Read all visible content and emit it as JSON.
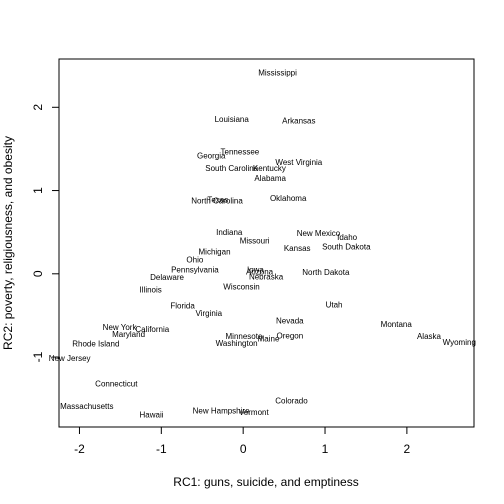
{
  "chart_data": {
    "type": "scatter",
    "xlabel": "RC1: guns, suicide, and emptiness",
    "ylabel": "RC2: poverty, religiousness, and obesity",
    "xlim": [
      -2.25,
      2.82
    ],
    "ylim": [
      -1.84,
      2.58
    ],
    "x_ticks": [
      "-2",
      "-1",
      "0",
      "1",
      "2"
    ],
    "y_ticks": [
      "-1",
      "0",
      "1",
      "2"
    ],
    "points": [
      {
        "label": "Mississippi",
        "x": 0.42,
        "y": 2.42
      },
      {
        "label": "Louisiana",
        "x": -0.14,
        "y": 1.86
      },
      {
        "label": "Arkansas",
        "x": 0.68,
        "y": 1.84
      },
      {
        "label": "Tennessee",
        "x": -0.04,
        "y": 1.47
      },
      {
        "label": "Georgia",
        "x": -0.39,
        "y": 1.42
      },
      {
        "label": "West Virginia",
        "x": 0.68,
        "y": 1.34
      },
      {
        "label": "South Carolina",
        "x": -0.14,
        "y": 1.27
      },
      {
        "label": "Kentucky",
        "x": 0.32,
        "y": 1.27
      },
      {
        "label": "Alabama",
        "x": 0.33,
        "y": 1.15
      },
      {
        "label": "North Carolina",
        "x": -0.32,
        "y": 0.88
      },
      {
        "label": "Texas",
        "x": -0.31,
        "y": 0.89
      },
      {
        "label": "Oklahoma",
        "x": 0.55,
        "y": 0.91
      },
      {
        "label": "Indiana",
        "x": -0.17,
        "y": 0.5
      },
      {
        "label": "New Mexico",
        "x": 0.92,
        "y": 0.49
      },
      {
        "label": "Idaho",
        "x": 1.27,
        "y": 0.44
      },
      {
        "label": "Missouri",
        "x": 0.14,
        "y": 0.4
      },
      {
        "label": "South Dakota",
        "x": 1.26,
        "y": 0.33
      },
      {
        "label": "Kansas",
        "x": 0.66,
        "y": 0.31
      },
      {
        "label": "Michigan",
        "x": -0.35,
        "y": 0.27
      },
      {
        "label": "Ohio",
        "x": -0.59,
        "y": 0.17
      },
      {
        "label": "Pennsylvania",
        "x": -0.59,
        "y": 0.05
      },
      {
        "label": "Iowa",
        "x": 0.15,
        "y": 0.05
      },
      {
        "label": "Arizona",
        "x": 0.2,
        "y": 0.03
      },
      {
        "label": "North Dakota",
        "x": 1.01,
        "y": 0.02
      },
      {
        "label": "Nebraska",
        "x": 0.28,
        "y": -0.03
      },
      {
        "label": "Delaware",
        "x": -0.93,
        "y": -0.04
      },
      {
        "label": "Wisconsin",
        "x": -0.02,
        "y": -0.15
      },
      {
        "label": "Illinois",
        "x": -1.13,
        "y": -0.19
      },
      {
        "label": "Florida",
        "x": -0.74,
        "y": -0.38
      },
      {
        "label": "Utah",
        "x": 1.11,
        "y": -0.37
      },
      {
        "label": "Virginia",
        "x": -0.42,
        "y": -0.47
      },
      {
        "label": "Nevada",
        "x": 0.57,
        "y": -0.56
      },
      {
        "label": "Montana",
        "x": 1.87,
        "y": -0.6
      },
      {
        "label": "New York",
        "x": -1.51,
        "y": -0.64
      },
      {
        "label": "California",
        "x": -1.11,
        "y": -0.66
      },
      {
        "label": "Maryland",
        "x": -1.4,
        "y": -0.72
      },
      {
        "label": "Oregon",
        "x": 0.57,
        "y": -0.74
      },
      {
        "label": "Minnesota",
        "x": 0.01,
        "y": -0.75
      },
      {
        "label": "Maine",
        "x": 0.31,
        "y": -0.78
      },
      {
        "label": "Alaska",
        "x": 2.27,
        "y": -0.75
      },
      {
        "label": "Rhode Island",
        "x": -1.8,
        "y": -0.84
      },
      {
        "label": "Washington",
        "x": -0.08,
        "y": -0.83
      },
      {
        "label": "Wyoming",
        "x": 2.64,
        "y": -0.82
      },
      {
        "label": "New Jersey",
        "x": -2.12,
        "y": -1.01
      },
      {
        "label": "Connecticut",
        "x": -1.55,
        "y": -1.32
      },
      {
        "label": "Colorado",
        "x": 0.59,
        "y": -1.52
      },
      {
        "label": "Massachusetts",
        "x": -1.91,
        "y": -1.59
      },
      {
        "label": "New Hampshire",
        "x": -0.27,
        "y": -1.64
      },
      {
        "label": "Vermont",
        "x": 0.13,
        "y": -1.66
      },
      {
        "label": "Hawaii",
        "x": -1.12,
        "y": -1.69
      }
    ]
  }
}
